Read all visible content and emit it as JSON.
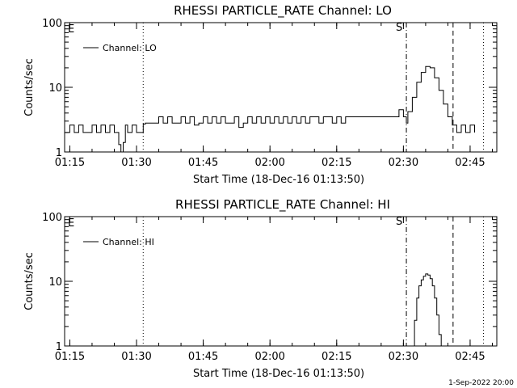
{
  "footer": {
    "timestamp": "1-Sep-2022 20:00"
  },
  "chart_data": [
    {
      "type": "line",
      "title": "RHESSI PARTICLE_RATE Channel: LO",
      "xlabel": "Start Time (18-Dec-16 01:13:50)",
      "ylabel": "Counts/sec",
      "xlim": [
        "01:13:50",
        "02:51:00"
      ],
      "ylim": [
        1,
        100
      ],
      "yscale": "log",
      "x_ticks": [
        "01:15",
        "01:30",
        "01:45",
        "02:00",
        "02:15",
        "02:30",
        "02:45"
      ],
      "y_ticks": [
        "1",
        "10",
        "100"
      ],
      "markers": {
        "e_label": "E",
        "s_label": "S"
      },
      "vlines": [
        {
          "x": "01:31:30",
          "style": "dotted"
        },
        {
          "x": "02:30:40",
          "style": "dashdot"
        },
        {
          "x": "02:41:10",
          "style": "dashed"
        },
        {
          "x": "02:48:00",
          "style": "dotted"
        }
      ],
      "legend": {
        "position": "top-left",
        "entries": [
          "Channel: LO"
        ]
      },
      "series": [
        {
          "name": "Channel: LO",
          "x": [
            "01:14:00",
            "01:15:00",
            "01:16:00",
            "01:17:00",
            "01:18:00",
            "01:19:00",
            "01:20:00",
            "01:21:00",
            "01:22:00",
            "01:23:00",
            "01:24:00",
            "01:25:00",
            "01:26:00",
            "01:26:30",
            "01:27:00",
            "01:27:30",
            "01:28:00",
            "01:29:00",
            "01:30:00",
            "01:31:00",
            "01:31:30",
            "01:32:00",
            "01:34:00",
            "01:35:00",
            "01:36:00",
            "01:37:00",
            "01:38:00",
            "01:39:00",
            "01:40:00",
            "01:41:00",
            "01:42:00",
            "01:43:00",
            "01:44:00",
            "01:45:00",
            "01:46:00",
            "01:47:00",
            "01:48:00",
            "01:49:00",
            "01:50:00",
            "01:51:00",
            "01:52:00",
            "01:53:00",
            "01:54:00",
            "01:55:00",
            "01:56:00",
            "01:57:00",
            "01:58:00",
            "01:59:00",
            "02:00:00",
            "02:01:00",
            "02:02:00",
            "02:03:00",
            "02:04:00",
            "02:05:00",
            "02:06:00",
            "02:07:00",
            "02:08:00",
            "02:09:00",
            "02:10:00",
            "02:11:00",
            "02:12:00",
            "02:13:00",
            "02:14:00",
            "02:15:00",
            "02:16:00",
            "02:17:00",
            "02:18:00",
            "02:19:00",
            "02:20:00",
            "02:21:00",
            "02:22:00",
            "02:23:00",
            "02:24:00",
            "02:25:00",
            "02:26:00",
            "02:27:00",
            "02:28:00",
            "02:29:00",
            "02:30:00",
            "02:30:40",
            "02:31:00",
            "02:32:00",
            "02:33:00",
            "02:34:00",
            "02:35:00",
            "02:36:00",
            "02:37:00",
            "02:38:00",
            "02:39:00",
            "02:40:00",
            "02:41:00",
            "02:42:00",
            "02:43:00",
            "02:44:00",
            "02:45:00",
            "02:46:00"
          ],
          "values": [
            2.0,
            2.6,
            2.0,
            2.6,
            2.0,
            2.0,
            2.6,
            2.0,
            2.6,
            2.0,
            2.6,
            2.0,
            1.3,
            0.9,
            1.4,
            2.6,
            2.0,
            2.6,
            2.0,
            2.0,
            2.7,
            2.8,
            2.8,
            3.5,
            2.8,
            3.5,
            2.8,
            2.8,
            3.5,
            2.8,
            3.5,
            2.6,
            2.8,
            3.5,
            2.8,
            3.5,
            2.8,
            3.5,
            2.8,
            2.8,
            3.5,
            2.4,
            2.8,
            3.5,
            2.8,
            3.5,
            2.8,
            3.5,
            2.8,
            3.5,
            2.8,
            3.5,
            2.8,
            3.5,
            2.8,
            3.5,
            2.8,
            3.5,
            3.5,
            2.8,
            3.5,
            3.5,
            2.8,
            3.5,
            2.8,
            3.5,
            3.5,
            3.5,
            3.5,
            3.5,
            3.5,
            3.5,
            3.5,
            3.5,
            3.5,
            3.5,
            3.5,
            4.5,
            3.5,
            2.8,
            4.2,
            7.0,
            12.0,
            17.0,
            21.0,
            20.0,
            14.0,
            9.0,
            5.5,
            3.5,
            2.6,
            2.0,
            2.6,
            2.0,
            2.6,
            2.0
          ]
        }
      ]
    },
    {
      "type": "line",
      "title": "RHESSI PARTICLE_RATE Channel: HI",
      "xlabel": "Start Time (18-Dec-16 01:13:50)",
      "ylabel": "Counts/sec",
      "xlim": [
        "01:13:50",
        "02:51:00"
      ],
      "ylim": [
        1,
        100
      ],
      "yscale": "log",
      "x_ticks": [
        "01:15",
        "01:30",
        "01:45",
        "02:00",
        "02:15",
        "02:30",
        "02:45"
      ],
      "y_ticks": [
        "1",
        "10",
        "100"
      ],
      "markers": {
        "e_label": "E",
        "s_label": "S"
      },
      "vlines": [
        {
          "x": "01:31:30",
          "style": "dotted"
        },
        {
          "x": "02:30:40",
          "style": "dashdot"
        },
        {
          "x": "02:41:10",
          "style": "dashed"
        },
        {
          "x": "02:48:00",
          "style": "dotted"
        }
      ],
      "legend": {
        "position": "top-left",
        "entries": [
          "Channel: HI"
        ]
      },
      "series": [
        {
          "name": "Channel: HI",
          "x": [
            "02:32:00",
            "02:32:30",
            "02:33:00",
            "02:33:30",
            "02:34:00",
            "02:34:30",
            "02:35:00",
            "02:35:30",
            "02:36:00",
            "02:36:30",
            "02:37:00",
            "02:37:30",
            "02:38:00",
            "02:38:30"
          ],
          "values": [
            0.8,
            2.5,
            5.5,
            8.5,
            10.5,
            12.0,
            13.0,
            12.5,
            11.0,
            8.5,
            5.5,
            3.0,
            1.5,
            0.8
          ]
        }
      ]
    }
  ]
}
